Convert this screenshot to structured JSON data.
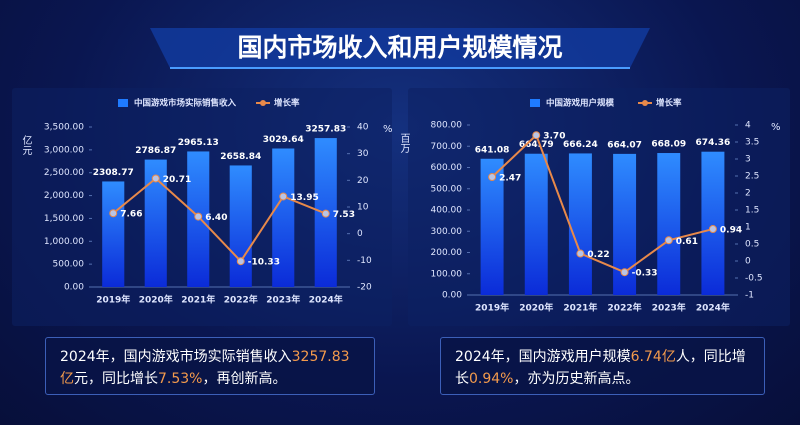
{
  "header": {
    "title": "国内市场收入和用户规模情况"
  },
  "chart_data": [
    {
      "type": "bar_line",
      "categories": [
        "2019年",
        "2020年",
        "2021年",
        "2022年",
        "2023年",
        "2024年"
      ],
      "series": [
        {
          "name": "中国游戏市场实际销售收入",
          "color": "#1f7bff",
          "type": "bar",
          "values": [
            2308.77,
            2786.87,
            2965.13,
            2658.84,
            3029.64,
            3257.83
          ],
          "value_labels": [
            "2308.77",
            "2786.87",
            "2965.13",
            "2658.84",
            "3029.64",
            "3257.83"
          ]
        },
        {
          "name": "增长率",
          "color": "#e8894a",
          "type": "line",
          "axis": "y2",
          "values": [
            7.66,
            20.71,
            6.4,
            -10.33,
            13.95,
            7.53
          ],
          "value_labels": [
            "7.66",
            "20.71",
            "6.40",
            "-10.33",
            "13.95",
            "7.53"
          ]
        }
      ],
      "ylabel": "亿元",
      "y2label": "%",
      "ylim": [
        0,
        3500
      ],
      "yticks": [
        {
          "value": 0,
          "label": "0.00"
        },
        {
          "value": 500,
          "label": "500.00"
        },
        {
          "value": 1000,
          "label": "1,000.00"
        },
        {
          "value": 1500,
          "label": "1,500.00"
        },
        {
          "value": 2000,
          "label": "2,000.00"
        },
        {
          "value": 2500,
          "label": "2,500.00"
        },
        {
          "value": 3000,
          "label": "3,000.00"
        },
        {
          "value": 3500,
          "label": "3,500.00"
        }
      ],
      "y2lim": [
        -20,
        40
      ],
      "y2ticks": [
        -20,
        -10,
        0,
        10,
        20,
        30,
        40
      ]
    },
    {
      "type": "bar_line",
      "categories": [
        "2019年",
        "2020年",
        "2021年",
        "2022年",
        "2023年",
        "2024年"
      ],
      "series": [
        {
          "name": "中国游戏用户规模",
          "color": "#1f7bff",
          "type": "bar",
          "values": [
            641.08,
            664.79,
            666.24,
            664.07,
            668.09,
            674.36
          ],
          "value_labels": [
            "641.08",
            "664.79",
            "666.24",
            "664.07",
            "668.09",
            "674.36"
          ]
        },
        {
          "name": "增长率",
          "color": "#e8894a",
          "type": "line",
          "axis": "y2",
          "values": [
            2.47,
            3.7,
            0.22,
            -0.33,
            0.61,
            0.94
          ],
          "value_labels": [
            "2.47",
            "3.70",
            "0.22",
            "-0.33",
            "0.61",
            "0.94"
          ]
        }
      ],
      "ylabel": "百万",
      "y2label": "%",
      "ylim": [
        0,
        800
      ],
      "yticks": [
        {
          "value": 0,
          "label": "0.00"
        },
        {
          "value": 100,
          "label": "100.00"
        },
        {
          "value": 200,
          "label": "200.00"
        },
        {
          "value": 300,
          "label": "300.00"
        },
        {
          "value": 400,
          "label": "400.00"
        },
        {
          "value": 500,
          "label": "500.00"
        },
        {
          "value": 600,
          "label": "600.00"
        },
        {
          "value": 700,
          "label": "700.00"
        },
        {
          "value": 800,
          "label": "800.00"
        }
      ],
      "y2lim": [
        -1,
        4
      ],
      "y2ticks": [
        -1,
        -0.5,
        0,
        0.5,
        1,
        1.5,
        2,
        2.5,
        3,
        3.5,
        4
      ]
    }
  ],
  "notes": [
    {
      "segments": [
        "2024年，国内游戏市场实际销售收入",
        "3257.83亿",
        "元，同比增长",
        "7.53%",
        "，再创新高。"
      ]
    },
    {
      "segments": [
        "2024年，国内游戏用户规模",
        "6.74亿",
        "人，同比增长",
        "0.94%",
        "，亦为历史新高点。"
      ]
    }
  ]
}
